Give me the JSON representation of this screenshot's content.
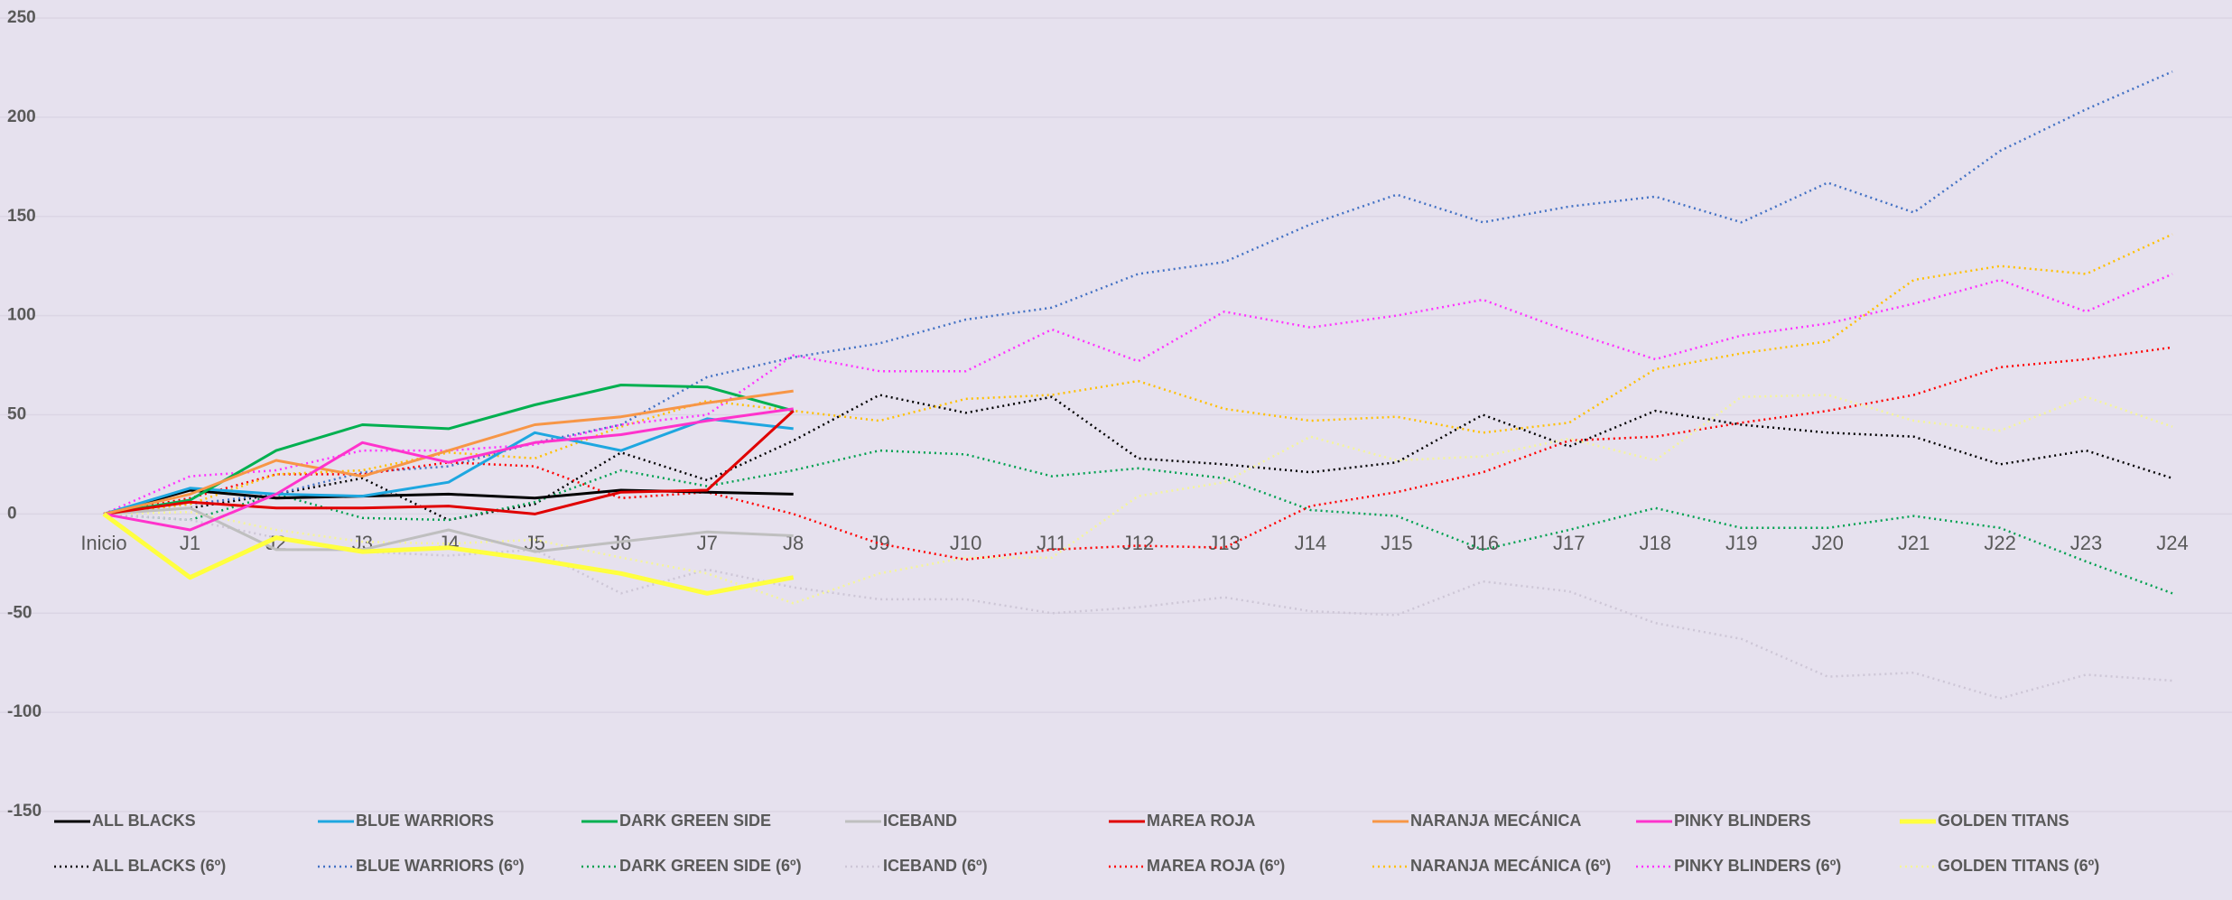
{
  "chart_data": {
    "type": "line",
    "categories": [
      "Inicio",
      "J1",
      "J2",
      "J3",
      "J4",
      "J5",
      "J6",
      "J7",
      "J8",
      "J9",
      "J10",
      "J11",
      "J12",
      "J13",
      "J14",
      "J15",
      "J16",
      "J17",
      "J18",
      "J19",
      "J20",
      "J21",
      "J22",
      "J23",
      "J24"
    ],
    "ylim": [
      -150,
      250
    ],
    "yticks": [
      -150,
      -100,
      -50,
      0,
      50,
      100,
      150,
      200,
      250
    ],
    "grid": true,
    "legend": "bottom",
    "series": [
      {
        "name": "ALL BLACKS",
        "color": "#000000",
        "dash": "solid",
        "values": [
          0,
          12,
          8,
          9,
          10,
          8,
          12,
          11,
          10,
          null,
          null,
          null,
          null,
          null,
          null,
          null,
          null,
          null,
          null,
          null,
          null,
          null,
          null,
          null,
          null
        ]
      },
      {
        "name": "BLUE WARRIORS",
        "color": "#1ea7e0",
        "dash": "solid",
        "values": [
          0,
          13,
          10,
          9,
          16,
          41,
          32,
          48,
          43,
          null,
          null,
          null,
          null,
          null,
          null,
          null,
          null,
          null,
          null,
          null,
          null,
          null,
          null,
          null,
          null
        ]
      },
      {
        "name": "DARK GREEN SIDE",
        "color": "#00b050",
        "dash": "solid",
        "values": [
          0,
          7,
          32,
          45,
          43,
          55,
          65,
          64,
          52,
          null,
          null,
          null,
          null,
          null,
          null,
          null,
          null,
          null,
          null,
          null,
          null,
          null,
          null,
          null,
          null
        ]
      },
      {
        "name": "ICEBAND",
        "color": "#bfbfbf",
        "dash": "solid",
        "values": [
          0,
          3,
          -18,
          -18,
          -8,
          -19,
          -14,
          -9,
          -11,
          null,
          null,
          null,
          null,
          null,
          null,
          null,
          null,
          null,
          null,
          null,
          null,
          null,
          null,
          null,
          null
        ]
      },
      {
        "name": "MAREA ROJA",
        "color": "#e00000",
        "dash": "solid",
        "values": [
          0,
          6,
          3,
          3,
          4,
          0,
          11,
          12,
          52,
          null,
          null,
          null,
          null,
          null,
          null,
          null,
          null,
          null,
          null,
          null,
          null,
          null,
          null,
          null,
          null
        ]
      },
      {
        "name": "NARANJA MECÁNICA",
        "color": "#f79646",
        "dash": "solid",
        "values": [
          0,
          10,
          27,
          19,
          32,
          45,
          49,
          56,
          62,
          null,
          null,
          null,
          null,
          null,
          null,
          null,
          null,
          null,
          null,
          null,
          null,
          null,
          null,
          null,
          null
        ]
      },
      {
        "name": "PINKY BLINDERS",
        "color": "#ff33cc",
        "dash": "solid",
        "values": [
          0,
          -8,
          10,
          36,
          26,
          36,
          40,
          47,
          53,
          null,
          null,
          null,
          null,
          null,
          null,
          null,
          null,
          null,
          null,
          null,
          null,
          null,
          null,
          null,
          null
        ]
      },
      {
        "name": "GOLDEN TITANS",
        "color": "#ffff3f",
        "dash": "thick",
        "values": [
          0,
          -32,
          -12,
          -19,
          -17,
          -23,
          -30,
          -40,
          -32,
          null,
          null,
          null,
          null,
          null,
          null,
          null,
          null,
          null,
          null,
          null,
          null,
          null,
          null,
          null,
          null
        ]
      },
      {
        "name": "ALL BLACKS (6º)",
        "color": "#000000",
        "dash": "dotted",
        "values": [
          0,
          3,
          10,
          18,
          -3,
          5,
          31,
          17,
          37,
          60,
          51,
          59,
          28,
          25,
          21,
          26,
          50,
          34,
          52,
          45,
          41,
          39,
          25,
          32,
          18
        ]
      },
      {
        "name": "BLUE WARRIORS (6º)",
        "color": "#4472c4",
        "dash": "dotted",
        "values": [
          0,
          5,
          10,
          21,
          24,
          36,
          45,
          69,
          79,
          86,
          98,
          104,
          121,
          127,
          146,
          161,
          147,
          155,
          160,
          147,
          167,
          152,
          183,
          204,
          223
        ]
      },
      {
        "name": "DARK GREEN SIDE (6º)",
        "color": "#00a050",
        "dash": "dotted",
        "values": [
          0,
          -3,
          10,
          -2,
          -3,
          6,
          22,
          14,
          22,
          32,
          30,
          19,
          23,
          18,
          2,
          -1,
          -18,
          -8,
          3,
          -7,
          -7,
          -1,
          -7,
          -24,
          -40
        ]
      },
      {
        "name": "ICEBAND (6º)",
        "color": "#cdc6d6",
        "dash": "dotted",
        "values": [
          0,
          -3,
          -12,
          -19,
          -21,
          -18,
          -40,
          -28,
          -37,
          -43,
          -43,
          -50,
          -47,
          -42,
          -49,
          -51,
          -34,
          -39,
          -55,
          -63,
          -82,
          -80,
          -93,
          -81,
          -84
        ]
      },
      {
        "name": "MAREA ROJA (6º)",
        "color": "#ff0000",
        "dash": "dotted",
        "values": [
          0,
          8,
          20,
          20,
          26,
          24,
          8,
          11,
          0,
          -15,
          -23,
          -18,
          -16,
          -17,
          4,
          11,
          21,
          37,
          39,
          46,
          52,
          60,
          74,
          78,
          84
        ]
      },
      {
        "name": "NARANJA MECÁNICA (6º)",
        "color": "#ffc000",
        "dash": "dotted",
        "values": [
          0,
          5,
          20,
          22,
          31,
          28,
          44,
          57,
          52,
          47,
          58,
          60,
          67,
          53,
          47,
          49,
          41,
          46,
          73,
          81,
          87,
          118,
          125,
          121,
          141
        ]
      },
      {
        "name": "PINKY BLINDERS (6º)",
        "color": "#ff33ff",
        "dash": "dotted",
        "values": [
          0,
          19,
          22,
          32,
          32,
          35,
          45,
          50,
          80,
          72,
          72,
          93,
          77,
          102,
          94,
          100,
          108,
          92,
          78,
          90,
          96,
          106,
          118,
          102,
          121
        ]
      },
      {
        "name": "GOLDEN TITANS (6º)",
        "color": "#f5f59a",
        "dash": "dotted",
        "values": [
          0,
          1,
          -8,
          -14,
          -15,
          -13,
          -22,
          -30,
          -45,
          -30,
          -22,
          -22,
          9,
          16,
          39,
          27,
          29,
          38,
          27,
          59,
          60,
          47,
          42,
          59,
          44
        ]
      }
    ]
  }
}
